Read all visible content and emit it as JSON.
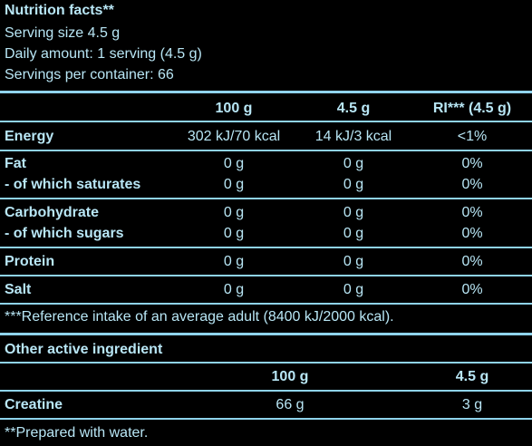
{
  "header": {
    "title": "Nutrition facts**",
    "serving_size": "Serving size 4.5 g",
    "daily_amount": "Daily amount: 1 serving (4.5 g)",
    "servings_per_container": "Servings per container: 66"
  },
  "table": {
    "columns": [
      "100 g",
      "4.5 g",
      "RI*** (4.5 g)"
    ],
    "rows": [
      {
        "label": "Energy",
        "v100": "302 kJ/70 kcal",
        "vserv": "14 kJ/3 kcal",
        "ri": "<1%"
      },
      {
        "label": "Fat",
        "v100": "0 g",
        "vserv": "0 g",
        "ri": "0%"
      },
      {
        "label": "- of which saturates",
        "v100": "0 g",
        "vserv": "0 g",
        "ri": "0%"
      },
      {
        "label": "Carbohydrate",
        "v100": "0 g",
        "vserv": "0 g",
        "ri": "0%"
      },
      {
        "label": "- of which sugars",
        "v100": "0 g",
        "vserv": "0 g",
        "ri": "0%"
      },
      {
        "label": "Protein",
        "v100": "0 g",
        "vserv": "0 g",
        "ri": "0%"
      },
      {
        "label": "Salt",
        "v100": "0 g",
        "vserv": "0 g",
        "ri": "0%"
      }
    ],
    "footnote": "***Reference intake of an average adult (8400 kJ/2000 kcal)."
  },
  "active": {
    "title": "Other active ingredient",
    "columns": [
      "100 g",
      "4.5 g"
    ],
    "rows": [
      {
        "label": "Creatine",
        "v100": "66 g",
        "vserv": "3 g"
      }
    ]
  },
  "footer": {
    "note": "**Prepared with water."
  }
}
